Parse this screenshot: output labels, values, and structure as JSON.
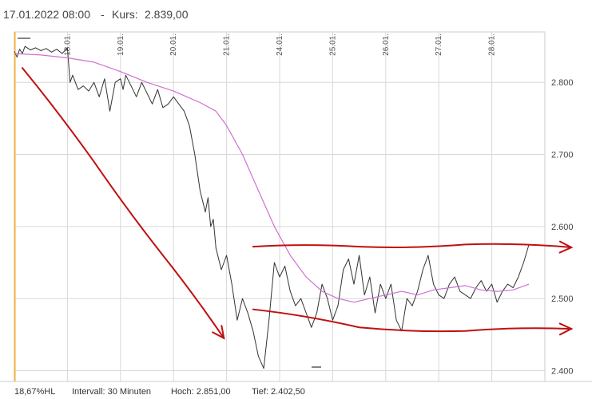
{
  "header": {
    "timestamp": "17.01.2022 08:00",
    "separator": "-",
    "price_label": "Kurs:",
    "price_value": "2.839,00"
  },
  "footer": {
    "range_pct": "18,67%HL",
    "interval": "Intervall: 30 Minuten",
    "high": "Hoch: 2.851,00",
    "low": "Tief: 2.402,50"
  },
  "colors": {
    "price_line": "#333333",
    "moving_average": "#d070d0",
    "annotation": "#c01010",
    "start_marker": "#f0b040",
    "grid": "#d8d8d8"
  },
  "chart_data": {
    "type": "line",
    "title": "",
    "xlabel": "",
    "ylabel": "",
    "ylim": [
      2385,
      2870
    ],
    "y_ticks": [
      "2.800",
      "2.700",
      "2.600",
      "2.500",
      "2.400"
    ],
    "y_tick_values": [
      2800,
      2700,
      2600,
      2500,
      2400
    ],
    "x_ticks": [
      "18.01.",
      "19.01.",
      "20.01.",
      "21.01.",
      "24.01.",
      "25.01.",
      "26.01.",
      "27.01.",
      "28.01."
    ],
    "x_tick_positions": [
      1,
      2,
      3,
      4,
      5,
      6,
      7,
      8,
      9
    ],
    "xlim": [
      0,
      10
    ],
    "grid": true,
    "series": [
      {
        "role": "price",
        "x": [
          0.0,
          0.05,
          0.1,
          0.15,
          0.2,
          0.3,
          0.4,
          0.5,
          0.6,
          0.7,
          0.8,
          0.9,
          1.0,
          1.05,
          1.1,
          1.2,
          1.3,
          1.4,
          1.5,
          1.6,
          1.7,
          1.8,
          1.9,
          2.0,
          2.05,
          2.1,
          2.2,
          2.3,
          2.4,
          2.5,
          2.6,
          2.7,
          2.8,
          2.9,
          3.0,
          3.1,
          3.2,
          3.3,
          3.4,
          3.5,
          3.6,
          3.65,
          3.7,
          3.75,
          3.8,
          3.9,
          4.0,
          4.1,
          4.2,
          4.3,
          4.4,
          4.5,
          4.6,
          4.7,
          4.8,
          4.9,
          5.0,
          5.1,
          5.2,
          5.3,
          5.4,
          5.5,
          5.6,
          5.7,
          5.8,
          5.9,
          6.0,
          6.1,
          6.2,
          6.3,
          6.4,
          6.5,
          6.6,
          6.7,
          6.8,
          6.9,
          7.0,
          7.1,
          7.2,
          7.3,
          7.4,
          7.5,
          7.6,
          7.7,
          7.8,
          7.9,
          8.0,
          8.1,
          8.2,
          8.3,
          8.4,
          8.5,
          8.6,
          8.7,
          8.8,
          8.9,
          9.0,
          9.1,
          9.2,
          9.3,
          9.4,
          9.5,
          9.6,
          9.7
        ],
        "y": [
          2843,
          2835,
          2846,
          2840,
          2850,
          2845,
          2848,
          2844,
          2847,
          2842,
          2846,
          2840,
          2848,
          2800,
          2810,
          2790,
          2795,
          2788,
          2800,
          2780,
          2805,
          2760,
          2800,
          2805,
          2790,
          2810,
          2795,
          2780,
          2800,
          2785,
          2770,
          2790,
          2765,
          2770,
          2780,
          2770,
          2760,
          2740,
          2700,
          2650,
          2620,
          2640,
          2600,
          2610,
          2570,
          2540,
          2560,
          2520,
          2470,
          2500,
          2480,
          2455,
          2420,
          2403,
          2470,
          2550,
          2530,
          2545,
          2510,
          2490,
          2500,
          2480,
          2460,
          2480,
          2520,
          2500,
          2470,
          2490,
          2540,
          2555,
          2520,
          2560,
          2505,
          2530,
          2480,
          2520,
          2500,
          2520,
          2470,
          2455,
          2500,
          2490,
          2510,
          2540,
          2560,
          2520,
          2505,
          2500,
          2520,
          2530,
          2510,
          2505,
          2500,
          2515,
          2525,
          2510,
          2520,
          2495,
          2510,
          2520,
          2515,
          2530,
          2550,
          2575
        ]
      },
      {
        "role": "moving-average",
        "x": [
          0.0,
          0.5,
          1.0,
          1.5,
          2.0,
          2.5,
          3.0,
          3.5,
          3.8,
          4.0,
          4.3,
          4.6,
          4.9,
          5.2,
          5.5,
          5.8,
          6.1,
          6.4,
          6.7,
          7.0,
          7.3,
          7.6,
          7.9,
          8.2,
          8.5,
          8.8,
          9.1,
          9.4,
          9.7
        ],
        "y": [
          2840,
          2838,
          2834,
          2828,
          2815,
          2800,
          2788,
          2772,
          2760,
          2740,
          2700,
          2650,
          2600,
          2560,
          2530,
          2510,
          2500,
          2495,
          2500,
          2505,
          2510,
          2505,
          2512,
          2515,
          2518,
          2512,
          2510,
          2512,
          2520
        ]
      }
    ],
    "annotations": [
      {
        "kind": "arrow",
        "points": [
          [
            0.15,
            2820
          ],
          [
            1.5,
            2690
          ],
          [
            2.8,
            2560
          ],
          [
            3.95,
            2445
          ]
        ]
      },
      {
        "kind": "arrow",
        "points": [
          [
            4.5,
            2572
          ],
          [
            6.5,
            2572
          ],
          [
            8.5,
            2575
          ],
          [
            10.5,
            2571
          ]
        ]
      },
      {
        "kind": "arrow",
        "points": [
          [
            4.5,
            2485
          ],
          [
            6.5,
            2460
          ],
          [
            8.5,
            2455
          ],
          [
            10.5,
            2458
          ]
        ]
      }
    ]
  }
}
